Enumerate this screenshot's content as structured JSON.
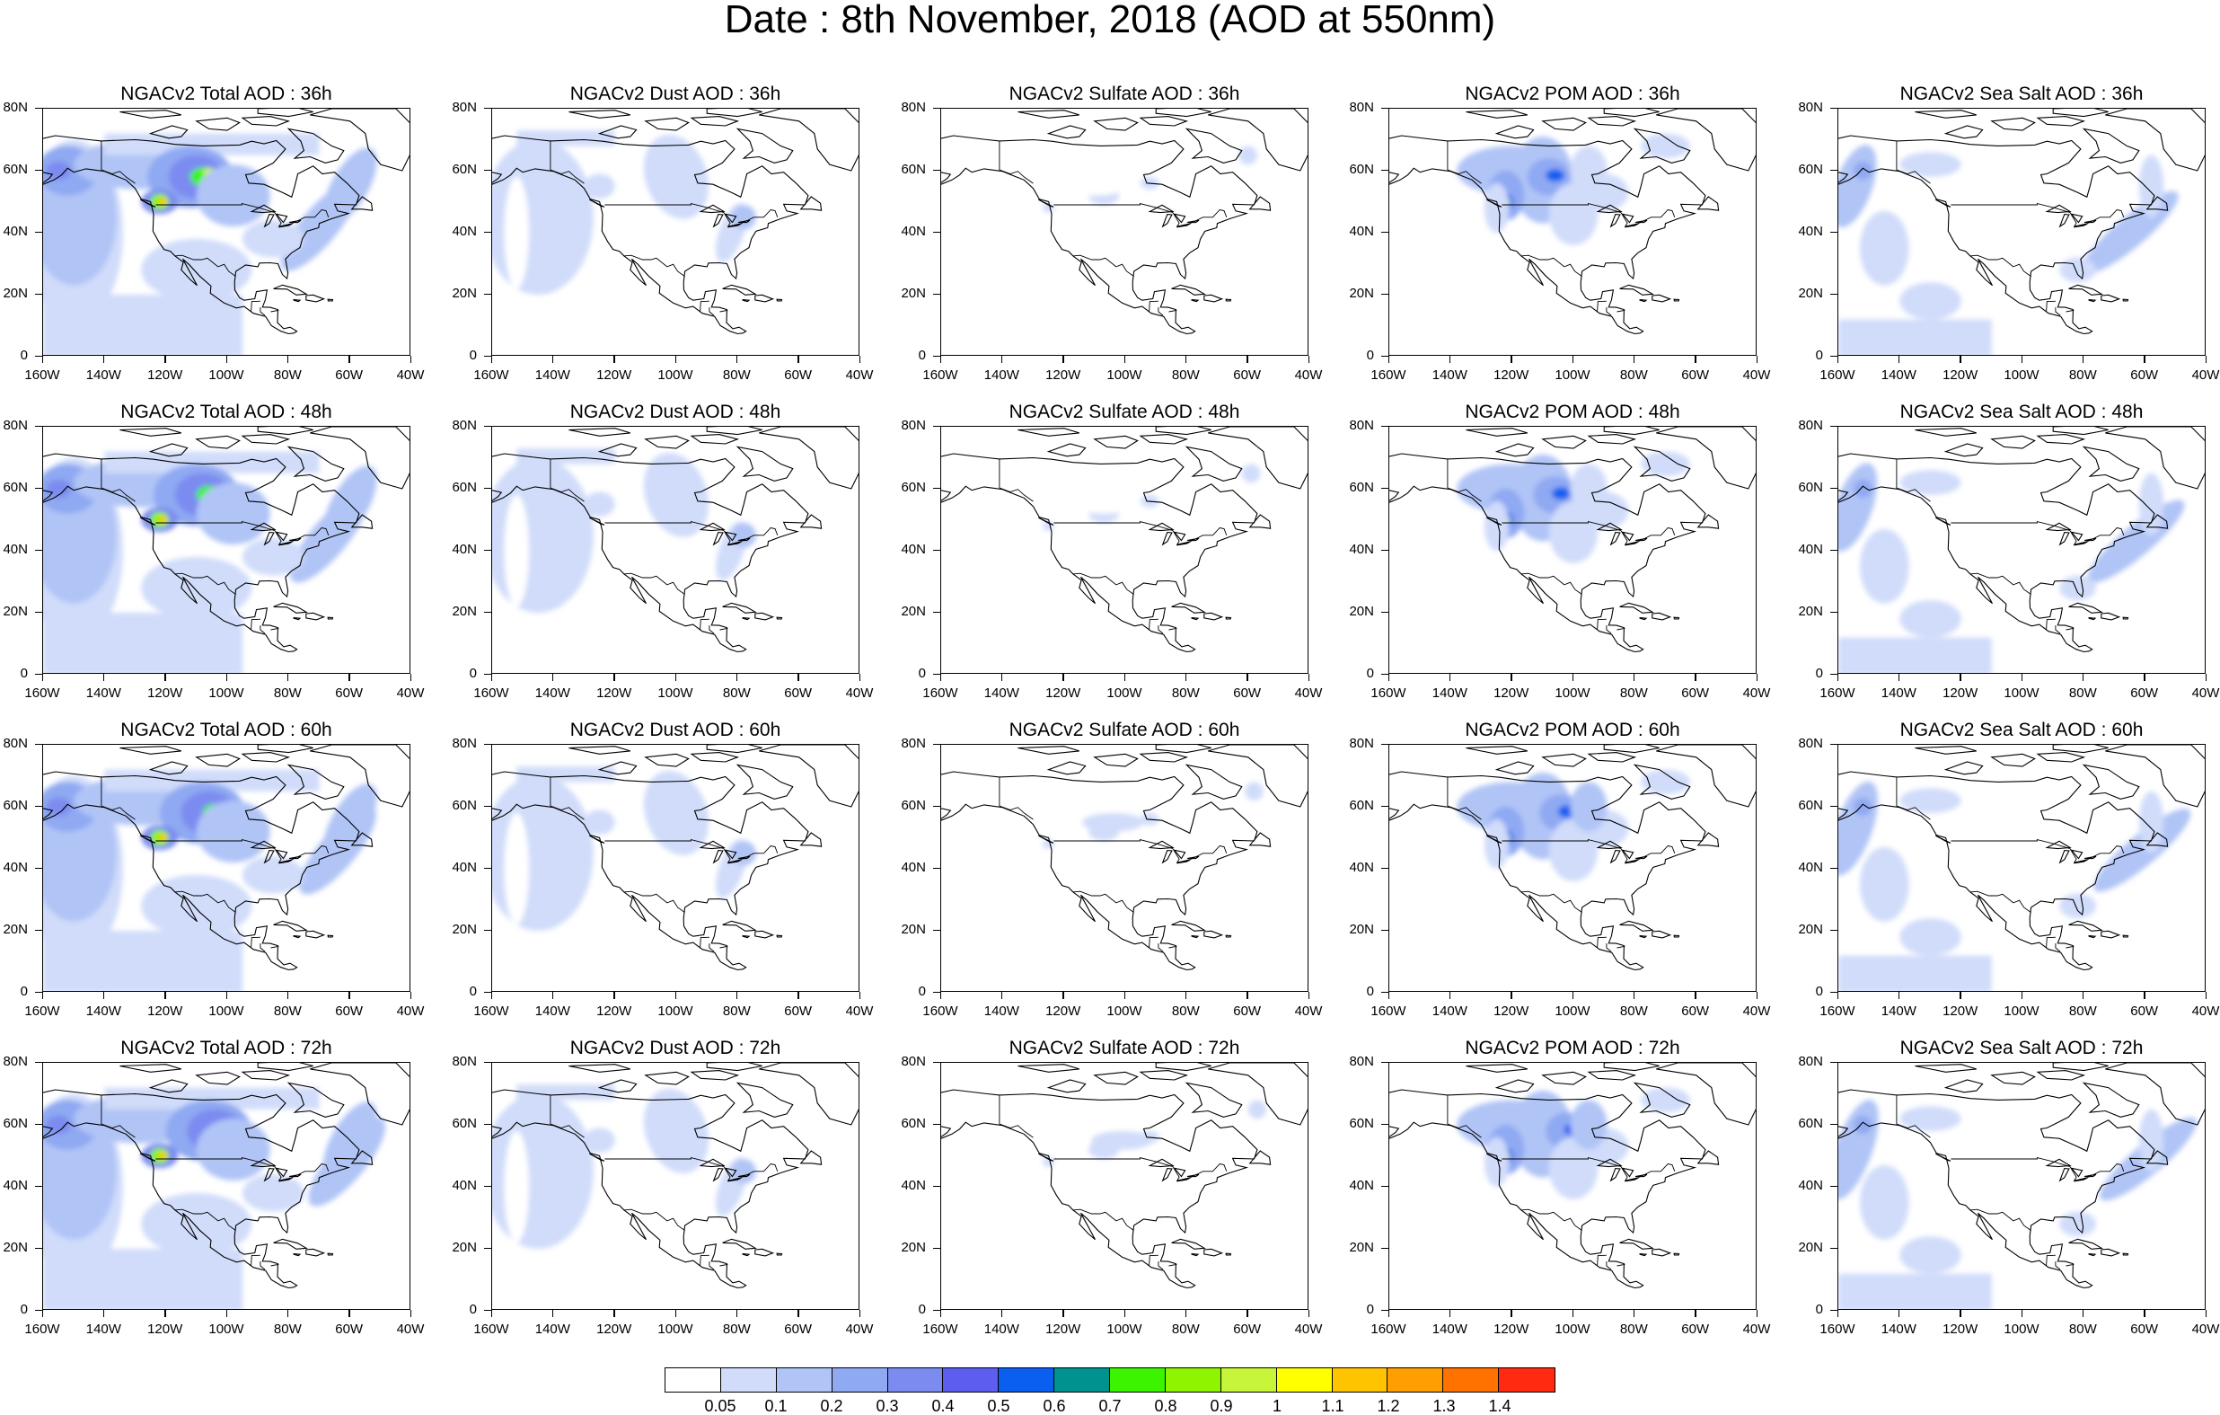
{
  "title": "Date : 8th November, 2018 (AOD at 550nm)",
  "axes": {
    "x_ticks": [
      "160W",
      "140W",
      "120W",
      "100W",
      "80W",
      "60W",
      "40W"
    ],
    "y_ticks": [
      "0",
      "20N",
      "40N",
      "60N",
      "80N"
    ],
    "lon_range": [
      -160,
      -40
    ],
    "lat_range": [
      0,
      80
    ]
  },
  "panels": [
    [
      {
        "title": "NGACv2 Total AOD : 36h",
        "species": "total"
      },
      {
        "title": "NGACv2 Dust AOD : 36h",
        "species": "dust"
      },
      {
        "title": "NGACv2 Sulfate AOD : 36h",
        "species": "sulfate"
      },
      {
        "title": "NGACv2 POM AOD : 36h",
        "species": "pom"
      },
      {
        "title": "NGACv2 Sea Salt AOD : 36h",
        "species": "seasalt"
      }
    ],
    [
      {
        "title": "NGACv2 Total AOD : 48h",
        "species": "total"
      },
      {
        "title": "NGACv2 Dust AOD : 48h",
        "species": "dust"
      },
      {
        "title": "NGACv2 Sulfate AOD : 48h",
        "species": "sulfate"
      },
      {
        "title": "NGACv2 POM AOD : 48h",
        "species": "pom"
      },
      {
        "title": "NGACv2 Sea Salt AOD : 48h",
        "species": "seasalt"
      }
    ],
    [
      {
        "title": "NGACv2 Total AOD : 60h",
        "species": "total"
      },
      {
        "title": "NGACv2 Dust AOD : 60h",
        "species": "dust"
      },
      {
        "title": "NGACv2 Sulfate AOD : 60h",
        "species": "sulfate"
      },
      {
        "title": "NGACv2 POM AOD : 60h",
        "species": "pom"
      },
      {
        "title": "NGACv2 Sea Salt AOD : 60h",
        "species": "seasalt"
      }
    ],
    [
      {
        "title": "NGACv2 Total AOD : 72h",
        "species": "total"
      },
      {
        "title": "NGACv2 Dust AOD : 72h",
        "species": "dust"
      },
      {
        "title": "NGACv2 Sulfate AOD : 72h",
        "species": "sulfate"
      },
      {
        "title": "NGACv2 POM AOD : 72h",
        "species": "pom"
      },
      {
        "title": "NGACv2 Sea Salt  AOD : 72h",
        "species": "seasalt"
      }
    ]
  ],
  "colorbar": {
    "colors": [
      "#ffffff",
      "#d0dcfa",
      "#b0c4f6",
      "#8fa9f2",
      "#7b8bf0",
      "#5d5df0",
      "#0a5ef0",
      "#00928e",
      "#3cf400",
      "#8ef400",
      "#c7f53a",
      "#ffff00",
      "#ffc400",
      "#ff9e00",
      "#ff7200",
      "#ff2a10"
    ],
    "labels": [
      "0.05",
      "0.1",
      "0.2",
      "0.3",
      "0.4",
      "0.5",
      "0.6",
      "0.7",
      "0.8",
      "0.9",
      "1",
      "1.1",
      "1.2",
      "1.3",
      "1.4"
    ]
  }
}
